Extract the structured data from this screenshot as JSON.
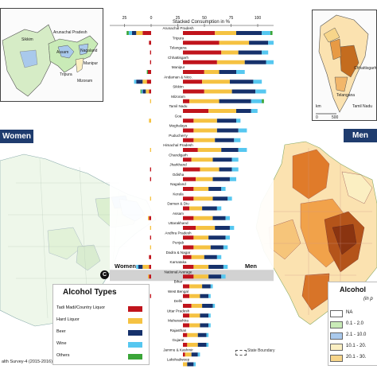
{
  "colors": {
    "tadi": "#c0141c",
    "hard": "#f5c242",
    "beer": "#16316b",
    "wine": "#56c7f0",
    "others": "#3aa538",
    "map_fill_low": "#eef7ea",
    "map_fill_mid": "#fbe2b0",
    "map_fill_high": "#e07b2a"
  },
  "inset_left": {
    "labels": [
      "Arunachal Pradesh",
      "Sikkim",
      "Nagaland",
      "Assam",
      "Manipur",
      "Tripura",
      "Mizoram"
    ]
  },
  "inset_right": {
    "labels": [
      "Chhattisgarh",
      "Telangana",
      "Tamil Nadu"
    ],
    "scale": {
      "title": "km",
      "ticks": [
        "0",
        "500"
      ]
    }
  },
  "map_headers": {
    "women": "Women",
    "men": "Men"
  },
  "map_panels": [
    {
      "panel": "Women",
      "palette": "light-green-dominant"
    },
    {
      "panel": "Men",
      "palette": "orange-red-dominant"
    }
  ],
  "legend_types": {
    "title": "Alcohol Types",
    "items": [
      {
        "label": "Tadi Madi/Country Liquor",
        "color": "#c0141c"
      },
      {
        "label": "Hard Liquor",
        "color": "#f5c242"
      },
      {
        "label": "Beer",
        "color": "#16316b"
      },
      {
        "label": "Wine",
        "color": "#56c7f0"
      },
      {
        "label": "Others",
        "color": "#3aa538"
      }
    ]
  },
  "legend_men": {
    "title": "Alcohol",
    "subtitle": "(in p",
    "items": [
      {
        "label": "NA",
        "color": "#ffffff"
      },
      {
        "label": "0.1 - 2.0",
        "color": "#c9ebb7"
      },
      {
        "label": "2.1 - 10.0",
        "color": "#a9c9ec"
      },
      {
        "label": "10.1 - 20.",
        "color": "#fbefc2"
      },
      {
        "label": "20.1 - 30.",
        "color": "#f7d58a"
      }
    ]
  },
  "source_text": "alth Survey-4 (2015-2016)",
  "boundary_text": "State Boundary",
  "panel_letter": "C",
  "side_labels": {
    "women": "Women",
    "men": "Men"
  },
  "chart_data": {
    "type": "bar",
    "title": "Stacked Consumption in %",
    "top_axis_ticks": [
      "25",
      "0",
      "25",
      "50",
      "75",
      "100"
    ],
    "highlight": "National Average",
    "series": [
      "Tadi Madi/Country Liquor",
      "Hard Liquor",
      "Beer",
      "Wine",
      "Others"
    ],
    "categories": [
      "Arunachal Pradesh",
      "Tripura",
      "Telangana",
      "Chhattisgarh",
      "Manipur",
      "Andaman & Nico.",
      "Sikkim",
      "Mizoram",
      "Tamil Nadu",
      "Goa",
      "Meghalaya",
      "Puducherry",
      "Himachal Pradesh",
      "Chandigarh",
      "Jharkhand",
      "Odisha",
      "Nagaland",
      "Kerala",
      "Daman & Diu",
      "Assam",
      "Uttarakhand",
      "Andhra Pradesh",
      "Punjab",
      "Dadra & Nagar",
      "Karnataka",
      "National Average",
      "Bihar",
      "West Bengal",
      "Delhi",
      "Uttar Pradesh",
      "Maharashtra",
      "Rajasthan",
      "Gujarat",
      "Jammu & Kashmir",
      "Lakshadweep"
    ],
    "women": [
      [
        8,
        6,
        4,
        3,
        2
      ],
      [
        2,
        0,
        0,
        0,
        0
      ],
      [
        1,
        0,
        0,
        0,
        0
      ],
      [
        1,
        0,
        0,
        0,
        0
      ],
      [
        3,
        0,
        0,
        0,
        1
      ],
      [
        4,
        4,
        6,
        2,
        0
      ],
      [
        2,
        3,
        3,
        1,
        1
      ],
      [
        0,
        1,
        0,
        0,
        0
      ],
      [
        0,
        0,
        0,
        0,
        0
      ],
      [
        0,
        2,
        0,
        0,
        0
      ],
      [
        0,
        0,
        0,
        0,
        0
      ],
      [
        0,
        0,
        0,
        0,
        0
      ],
      [
        0,
        1,
        0,
        0,
        0
      ],
      [
        0,
        0,
        0,
        0,
        0
      ],
      [
        1,
        0,
        0,
        0,
        0
      ],
      [
        1,
        0,
        0,
        0,
        0
      ],
      [
        0,
        0,
        0,
        0,
        0
      ],
      [
        0,
        1,
        0,
        0,
        0
      ],
      [
        0,
        0,
        0,
        0,
        0
      ],
      [
        2,
        1,
        0,
        0,
        0
      ],
      [
        0,
        1,
        0,
        0,
        0
      ],
      [
        1,
        0,
        0,
        0,
        0
      ],
      [
        0,
        1,
        0,
        0,
        0
      ],
      [
        2,
        0,
        0,
        0,
        0
      ],
      [
        2,
        6,
        4,
        2,
        0
      ],
      [
        2,
        1,
        0,
        0,
        0
      ],
      [
        0,
        0,
        0,
        0,
        0
      ],
      [
        1,
        0,
        0,
        0,
        0
      ],
      [
        0,
        0,
        0,
        0,
        0
      ],
      [
        0,
        0,
        0,
        0,
        0
      ],
      [
        0,
        0,
        0,
        0,
        0
      ],
      [
        0,
        0,
        0,
        0,
        0
      ],
      [
        0,
        0,
        0,
        0,
        0
      ],
      [
        0,
        0,
        0,
        0,
        0
      ],
      [
        0,
        0,
        0,
        0,
        0
      ]
    ],
    "men": [
      [
        30,
        20,
        24,
        8,
        2
      ],
      [
        34,
        28,
        18,
        6,
        0
      ],
      [
        36,
        16,
        22,
        6,
        0
      ],
      [
        32,
        26,
        20,
        8,
        0
      ],
      [
        20,
        14,
        16,
        8,
        0
      ],
      [
        18,
        26,
        22,
        8,
        0
      ],
      [
        20,
        26,
        22,
        10,
        0
      ],
      [
        6,
        28,
        30,
        10,
        2
      ],
      [
        24,
        26,
        14,
        6,
        0
      ],
      [
        10,
        22,
        18,
        4,
        0
      ],
      [
        10,
        22,
        20,
        8,
        0
      ],
      [
        10,
        20,
        18,
        6,
        0
      ],
      [
        14,
        22,
        16,
        8,
        0
      ],
      [
        8,
        20,
        18,
        6,
        0
      ],
      [
        16,
        18,
        12,
        6,
        0
      ],
      [
        12,
        16,
        16,
        6,
        0
      ],
      [
        10,
        14,
        12,
        4,
        0
      ],
      [
        10,
        18,
        14,
        4,
        0
      ],
      [
        6,
        12,
        14,
        4,
        0
      ],
      [
        10,
        18,
        12,
        4,
        0
      ],
      [
        12,
        18,
        14,
        4,
        0
      ],
      [
        10,
        14,
        16,
        4,
        0
      ],
      [
        10,
        16,
        12,
        4,
        0
      ],
      [
        8,
        12,
        12,
        4,
        0
      ],
      [
        10,
        14,
        14,
        4,
        0
      ],
      [
        10,
        14,
        12,
        4,
        0
      ],
      [
        6,
        12,
        8,
        2,
        0
      ],
      [
        6,
        10,
        8,
        2,
        0
      ],
      [
        8,
        10,
        10,
        2,
        0
      ],
      [
        6,
        10,
        8,
        2,
        0
      ],
      [
        6,
        10,
        8,
        2,
        0
      ],
      [
        4,
        10,
        8,
        2,
        0
      ],
      [
        4,
        10,
        8,
        2,
        0
      ],
      [
        2,
        6,
        6,
        2,
        0
      ],
      [
        0,
        4,
        6,
        2,
        0
      ]
    ],
    "ylim": [
      -25,
      100
    ]
  }
}
